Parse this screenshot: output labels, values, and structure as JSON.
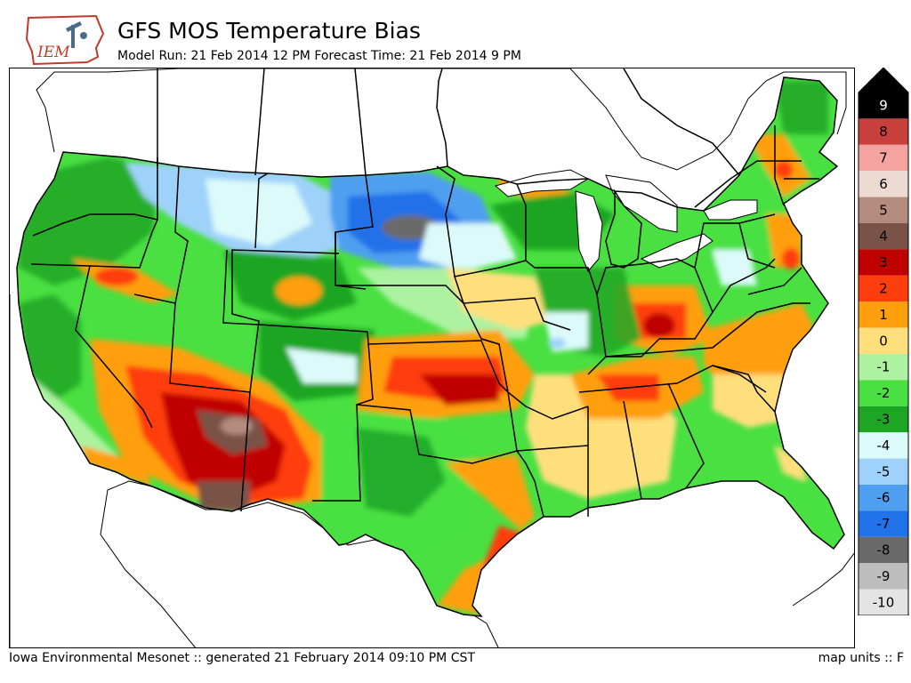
{
  "header": {
    "title": "GFS MOS Temperature Bias",
    "subtitle": "Model Run: 21 Feb 2014 12 PM Forecast Time: 21 Feb 2014 9 PM",
    "logo_text": "IEM"
  },
  "footer": {
    "left": "Iowa Environmental Mesonet :: generated 21 February 2014 09:10 PM CST",
    "right": "map units :: F"
  },
  "legend": {
    "levels": [
      {
        "label": "9",
        "color": "#000000"
      },
      {
        "label": "8",
        "color": "#c7403c"
      },
      {
        "label": "7",
        "color": "#f5a3a0"
      },
      {
        "label": "6",
        "color": "#ecdad2"
      },
      {
        "label": "5",
        "color": "#b38b7f"
      },
      {
        "label": "4",
        "color": "#7a5247"
      },
      {
        "label": "3",
        "color": "#c00000"
      },
      {
        "label": "2",
        "color": "#ff3d0d"
      },
      {
        "label": "1",
        "color": "#ff9f0e"
      },
      {
        "label": "0",
        "color": "#ffdf7c"
      },
      {
        "label": "-1",
        "color": "#acf2a0"
      },
      {
        "label": "-2",
        "color": "#4ae042"
      },
      {
        "label": "-3",
        "color": "#1da524"
      },
      {
        "label": "-4",
        "color": "#dcfafa"
      },
      {
        "label": "-5",
        "color": "#9fd2fa"
      },
      {
        "label": "-6",
        "color": "#4f9ff1"
      },
      {
        "label": "-7",
        "color": "#2171e8"
      },
      {
        "label": "-8",
        "color": "#6a6a6a"
      },
      {
        "label": "-9",
        "color": "#bdbdbd"
      },
      {
        "label": "-10",
        "color": "#e4e4e4"
      }
    ]
  },
  "colors": {
    "land_default": "#4ae042",
    "lakes": "#ffffff",
    "borders": "#000000"
  }
}
